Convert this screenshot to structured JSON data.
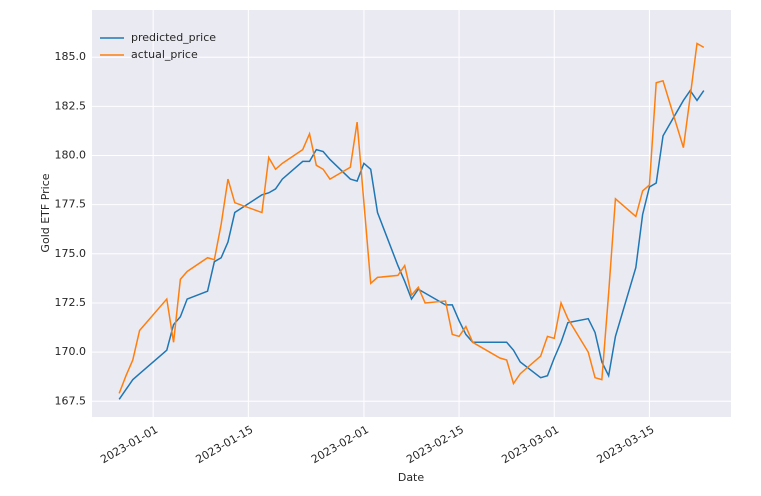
{
  "chart_data": {
    "type": "line",
    "x_label": "Date",
    "y_label": "Gold ETF Price",
    "x": [
      "2022-12-27",
      "2022-12-28",
      "2022-12-29",
      "2022-12-30",
      "2023-01-03",
      "2023-01-04",
      "2023-01-05",
      "2023-01-06",
      "2023-01-09",
      "2023-01-10",
      "2023-01-11",
      "2023-01-12",
      "2023-01-13",
      "2023-01-17",
      "2023-01-18",
      "2023-01-19",
      "2023-01-20",
      "2023-01-23",
      "2023-01-24",
      "2023-01-25",
      "2023-01-26",
      "2023-01-27",
      "2023-01-30",
      "2023-01-31",
      "2023-02-01",
      "2023-02-02",
      "2023-02-03",
      "2023-02-06",
      "2023-02-07",
      "2023-02-08",
      "2023-02-09",
      "2023-02-10",
      "2023-02-13",
      "2023-02-14",
      "2023-02-15",
      "2023-02-16",
      "2023-02-17",
      "2023-02-21",
      "2023-02-22",
      "2023-02-23",
      "2023-02-24",
      "2023-02-27",
      "2023-02-28",
      "2023-03-01",
      "2023-03-02",
      "2023-03-03",
      "2023-03-06",
      "2023-03-07",
      "2023-03-08",
      "2023-03-09",
      "2023-03-10",
      "2023-03-13",
      "2023-03-14",
      "2023-03-15",
      "2023-03-16",
      "2023-03-17",
      "2023-03-20",
      "2023-03-21",
      "2023-03-22",
      "2023-03-23"
    ],
    "series": [
      {
        "name": "predicted_price",
        "color": "#1f77b4",
        "values": [
          167.6,
          168.1,
          168.6,
          168.9,
          170.1,
          171.4,
          171.8,
          172.7,
          173.1,
          174.6,
          174.8,
          175.6,
          177.1,
          178.0,
          178.1,
          178.3,
          178.8,
          179.7,
          179.7,
          180.3,
          180.2,
          179.8,
          178.8,
          178.7,
          179.6,
          179.3,
          177.1,
          174.4,
          173.6,
          172.7,
          173.2,
          173.0,
          172.4,
          172.4,
          171.6,
          170.9,
          170.5,
          170.5,
          170.5,
          170.1,
          169.5,
          168.7,
          168.8,
          169.7,
          170.5,
          171.5,
          171.7,
          171.0,
          169.5,
          168.8,
          170.8,
          174.3,
          177.0,
          178.4,
          178.6,
          181.0,
          182.8,
          183.3,
          182.8,
          183.3
        ]
      },
      {
        "name": "actual_price",
        "color": "#ff7f0e",
        "values": [
          167.9,
          168.8,
          169.6,
          171.1,
          172.7,
          170.5,
          173.7,
          174.1,
          174.8,
          174.7,
          176.5,
          178.8,
          177.6,
          177.1,
          179.9,
          179.3,
          179.6,
          180.3,
          181.1,
          179.5,
          179.3,
          178.8,
          179.4,
          181.7,
          177.6,
          173.5,
          173.8,
          173.9,
          174.4,
          172.9,
          173.3,
          172.5,
          172.6,
          170.9,
          170.8,
          171.3,
          170.5,
          169.7,
          169.6,
          168.4,
          168.9,
          169.8,
          170.8,
          170.7,
          172.5,
          171.7,
          170.0,
          168.7,
          168.6,
          173.0,
          177.8,
          176.9,
          178.2,
          178.5,
          183.7,
          183.8,
          180.4,
          183.0,
          185.7,
          185.5
        ]
      }
    ],
    "xlim": [
      "2022-12-23",
      "2023-03-27"
    ],
    "xticks": [
      "2023-01-01",
      "2023-01-15",
      "2023-02-01",
      "2023-02-15",
      "2023-03-01",
      "2023-03-15"
    ],
    "ylim": [
      166.7,
      187.4
    ],
    "yticks": [
      167.5,
      {
        "value": 170,
        "label": "170.0"
      },
      172.5,
      {
        "value": 175,
        "label": "175.0"
      },
      177.5,
      {
        "value": 180,
        "label": "180.0"
      },
      182.5,
      {
        "value": 185,
        "label": "185.0"
      }
    ],
    "grid": true,
    "legend": "upper left"
  }
}
